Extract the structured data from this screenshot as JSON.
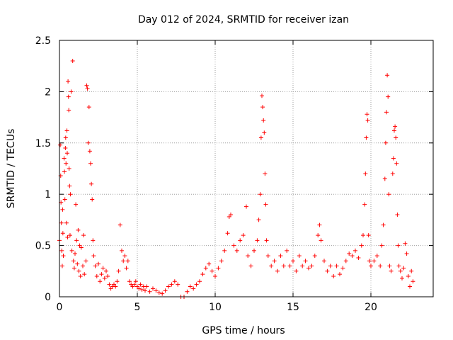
{
  "chart_data": {
    "type": "scatter",
    "title": "Day 012 of 2024, SRMTID for receiver izan",
    "xlabel": "GPS time / hours",
    "ylabel": "SRMTID / TECUs",
    "xlim": [
      0,
      24
    ],
    "ylim": [
      0,
      2.5
    ],
    "x_ticks": [
      0,
      5,
      10,
      15,
      20
    ],
    "x_tick_labels": [
      "0",
      "5",
      "10",
      "15",
      "20"
    ],
    "y_ticks": [
      0,
      0.5,
      1,
      1.5,
      2,
      2.5
    ],
    "y_tick_labels": [
      "0",
      "0.5",
      "1",
      "1.5",
      "2",
      "2.5"
    ],
    "grid": true,
    "marker": "+",
    "marker_color": "#ff0000",
    "series": [
      {
        "name": "SRMTID",
        "points": [
          [
            0.0,
            0.55
          ],
          [
            0.05,
            1.48
          ],
          [
            0.08,
            1.18
          ],
          [
            0.1,
            0.92
          ],
          [
            0.12,
            0.72
          ],
          [
            0.15,
            0.45
          ],
          [
            0.18,
            0.3
          ],
          [
            0.2,
            0.85
          ],
          [
            0.22,
            0.62
          ],
          [
            0.25,
            0.4
          ],
          [
            0.3,
            1.35
          ],
          [
            0.32,
            1.22
          ],
          [
            0.35,
            0.95
          ],
          [
            0.38,
            1.45
          ],
          [
            0.4,
            1.55
          ],
          [
            0.42,
            1.3
          ],
          [
            0.45,
            0.72
          ],
          [
            0.48,
            1.62
          ],
          [
            0.5,
            1.4
          ],
          [
            0.52,
            0.58
          ],
          [
            0.55,
            2.1
          ],
          [
            0.58,
            1.95
          ],
          [
            0.6,
            1.82
          ],
          [
            0.62,
            1.25
          ],
          [
            0.65,
            1.08
          ],
          [
            0.68,
            0.6
          ],
          [
            0.7,
            1.0
          ],
          [
            0.75,
            2.0
          ],
          [
            0.8,
            0.45
          ],
          [
            0.85,
            2.3
          ],
          [
            0.9,
            0.35
          ],
          [
            0.95,
            0.28
          ],
          [
            1.0,
            0.42
          ],
          [
            1.05,
            0.9
          ],
          [
            1.1,
            0.55
          ],
          [
            1.15,
            0.32
          ],
          [
            1.2,
            0.65
          ],
          [
            1.25,
            0.25
          ],
          [
            1.3,
            0.5
          ],
          [
            1.35,
            0.2
          ],
          [
            1.4,
            0.48
          ],
          [
            1.5,
            0.3
          ],
          [
            1.55,
            0.6
          ],
          [
            1.6,
            0.22
          ],
          [
            1.7,
            0.35
          ],
          [
            1.75,
            2.06
          ],
          [
            1.8,
            2.03
          ],
          [
            1.85,
            1.5
          ],
          [
            1.9,
            1.85
          ],
          [
            1.95,
            1.42
          ],
          [
            2.0,
            1.3
          ],
          [
            2.05,
            1.1
          ],
          [
            2.1,
            0.95
          ],
          [
            2.15,
            0.55
          ],
          [
            2.2,
            0.4
          ],
          [
            2.3,
            0.3
          ],
          [
            2.4,
            0.2
          ],
          [
            2.5,
            0.32
          ],
          [
            2.6,
            0.15
          ],
          [
            2.7,
            0.22
          ],
          [
            2.8,
            0.28
          ],
          [
            2.9,
            0.18
          ],
          [
            3.0,
            0.25
          ],
          [
            3.1,
            0.2
          ],
          [
            3.2,
            0.12
          ],
          [
            3.3,
            0.08
          ],
          [
            3.4,
            0.1
          ],
          [
            3.5,
            0.12
          ],
          [
            3.6,
            0.1
          ],
          [
            3.7,
            0.15
          ],
          [
            3.8,
            0.25
          ],
          [
            3.9,
            0.7
          ],
          [
            4.0,
            0.45
          ],
          [
            4.1,
            0.35
          ],
          [
            4.2,
            0.4
          ],
          [
            4.3,
            0.28
          ],
          [
            4.4,
            0.35
          ],
          [
            4.5,
            0.15
          ],
          [
            4.6,
            0.12
          ],
          [
            4.7,
            0.1
          ],
          [
            4.8,
            0.12
          ],
          [
            4.9,
            0.15
          ],
          [
            5.0,
            0.1
          ],
          [
            5.1,
            0.08
          ],
          [
            5.2,
            0.12
          ],
          [
            5.3,
            0.07
          ],
          [
            5.4,
            0.1
          ],
          [
            5.5,
            0.06
          ],
          [
            5.6,
            0.1
          ],
          [
            5.8,
            0.05
          ],
          [
            6.0,
            0.08
          ],
          [
            6.2,
            0.06
          ],
          [
            6.4,
            0.04
          ],
          [
            6.6,
            0.03
          ],
          [
            6.8,
            0.06
          ],
          [
            7.0,
            0.1
          ],
          [
            7.2,
            0.12
          ],
          [
            7.4,
            0.15
          ],
          [
            7.6,
            0.12
          ],
          [
            7.8,
            0.0
          ],
          [
            8.0,
            0.0
          ],
          [
            8.2,
            0.05
          ],
          [
            8.4,
            0.1
          ],
          [
            8.6,
            0.08
          ],
          [
            8.8,
            0.12
          ],
          [
            9.0,
            0.15
          ],
          [
            9.2,
            0.22
          ],
          [
            9.4,
            0.28
          ],
          [
            9.6,
            0.32
          ],
          [
            9.8,
            0.25
          ],
          [
            10.0,
            0.2
          ],
          [
            10.2,
            0.28
          ],
          [
            10.4,
            0.35
          ],
          [
            10.6,
            0.45
          ],
          [
            10.8,
            0.62
          ],
          [
            10.9,
            0.78
          ],
          [
            11.0,
            0.8
          ],
          [
            11.2,
            0.5
          ],
          [
            11.4,
            0.45
          ],
          [
            11.6,
            0.55
          ],
          [
            11.8,
            0.6
          ],
          [
            12.0,
            0.88
          ],
          [
            12.1,
            0.4
          ],
          [
            12.3,
            0.3
          ],
          [
            12.5,
            0.45
          ],
          [
            12.7,
            0.55
          ],
          [
            12.8,
            0.75
          ],
          [
            12.9,
            1.0
          ],
          [
            12.95,
            1.55
          ],
          [
            13.0,
            1.96
          ],
          [
            13.05,
            1.85
          ],
          [
            13.1,
            1.72
          ],
          [
            13.15,
            1.6
          ],
          [
            13.2,
            1.2
          ],
          [
            13.25,
            0.9
          ],
          [
            13.3,
            0.55
          ],
          [
            13.4,
            0.4
          ],
          [
            13.6,
            0.3
          ],
          [
            13.8,
            0.35
          ],
          [
            14.0,
            0.25
          ],
          [
            14.2,
            0.4
          ],
          [
            14.4,
            0.3
          ],
          [
            14.6,
            0.45
          ],
          [
            14.8,
            0.3
          ],
          [
            15.0,
            0.35
          ],
          [
            15.2,
            0.25
          ],
          [
            15.4,
            0.4
          ],
          [
            15.6,
            0.3
          ],
          [
            15.8,
            0.35
          ],
          [
            16.0,
            0.28
          ],
          [
            16.2,
            0.3
          ],
          [
            16.4,
            0.4
          ],
          [
            16.6,
            0.6
          ],
          [
            16.7,
            0.7
          ],
          [
            16.8,
            0.55
          ],
          [
            17.0,
            0.35
          ],
          [
            17.2,
            0.25
          ],
          [
            17.4,
            0.3
          ],
          [
            17.6,
            0.2
          ],
          [
            17.8,
            0.3
          ],
          [
            18.0,
            0.22
          ],
          [
            18.2,
            0.28
          ],
          [
            18.4,
            0.35
          ],
          [
            18.6,
            0.42
          ],
          [
            18.8,
            0.4
          ],
          [
            19.0,
            0.45
          ],
          [
            19.2,
            0.38
          ],
          [
            19.4,
            0.5
          ],
          [
            19.5,
            0.6
          ],
          [
            19.6,
            0.9
          ],
          [
            19.65,
            1.2
          ],
          [
            19.7,
            1.55
          ],
          [
            19.75,
            1.78
          ],
          [
            19.8,
            1.72
          ],
          [
            19.85,
            0.6
          ],
          [
            19.9,
            0.35
          ],
          [
            20.0,
            0.3
          ],
          [
            20.2,
            0.35
          ],
          [
            20.4,
            0.4
          ],
          [
            20.6,
            0.3
          ],
          [
            20.7,
            0.5
          ],
          [
            20.8,
            0.7
          ],
          [
            20.9,
            1.15
          ],
          [
            20.95,
            1.5
          ],
          [
            21.0,
            1.8
          ],
          [
            21.05,
            2.16
          ],
          [
            21.1,
            1.95
          ],
          [
            21.15,
            1.0
          ],
          [
            21.2,
            0.3
          ],
          [
            21.3,
            0.25
          ],
          [
            21.4,
            1.2
          ],
          [
            21.45,
            1.35
          ],
          [
            21.5,
            1.62
          ],
          [
            21.55,
            1.66
          ],
          [
            21.6,
            1.55
          ],
          [
            21.65,
            1.3
          ],
          [
            21.7,
            0.8
          ],
          [
            21.75,
            0.5
          ],
          [
            21.8,
            0.3
          ],
          [
            21.9,
            0.25
          ],
          [
            22.0,
            0.18
          ],
          [
            22.1,
            0.28
          ],
          [
            22.2,
            0.52
          ],
          [
            22.3,
            0.42
          ],
          [
            22.4,
            0.2
          ],
          [
            22.5,
            0.1
          ],
          [
            22.6,
            0.25
          ],
          [
            22.7,
            0.15
          ]
        ]
      }
    ]
  }
}
